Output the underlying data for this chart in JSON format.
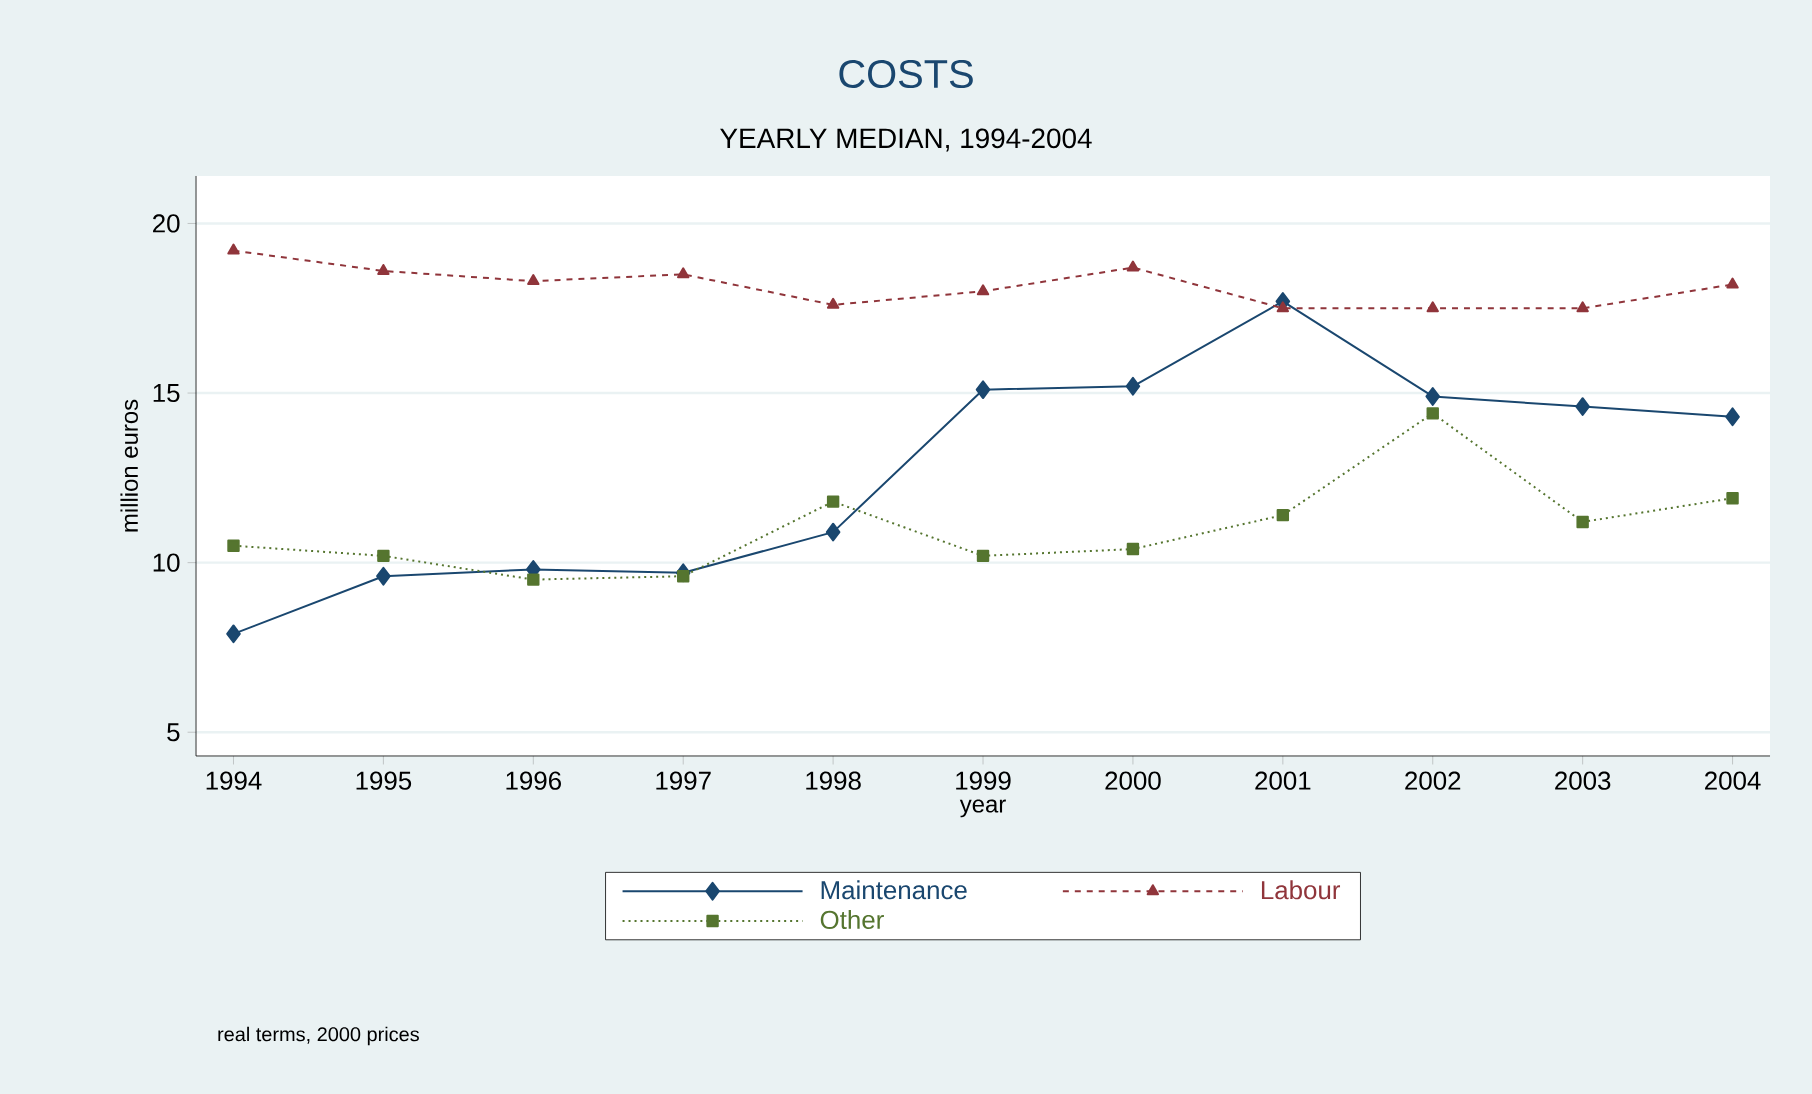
{
  "chart_data": {
    "type": "line",
    "title": "COSTS",
    "subtitle": "YEARLY MEDIAN, 1994-2004",
    "xlabel": "year",
    "ylabel": "million euros",
    "x": [
      1994,
      1995,
      1996,
      1997,
      1998,
      1999,
      2000,
      2001,
      2002,
      2003,
      2004
    ],
    "series": [
      {
        "name": "Maintenance",
        "color": "#1a476f",
        "marker": "diamond",
        "line_style": "solid",
        "values": [
          7.9,
          9.6,
          9.8,
          9.7,
          10.9,
          15.1,
          15.2,
          17.7,
          14.9,
          14.6,
          14.3
        ]
      },
      {
        "name": "Labour",
        "color": "#90353b",
        "marker": "triangle",
        "line_style": "dashed",
        "values": [
          19.2,
          18.6,
          18.3,
          18.5,
          17.6,
          18.0,
          18.7,
          17.5,
          17.5,
          17.5,
          18.2
        ]
      },
      {
        "name": "Other",
        "color": "#55752f",
        "marker": "square",
        "line_style": "dotted",
        "values": [
          10.5,
          10.2,
          9.5,
          9.6,
          11.8,
          10.2,
          10.4,
          11.4,
          14.4,
          11.2,
          11.9
        ]
      }
    ],
    "xlim": [
      1993.75,
      2004.25
    ],
    "ylim": [
      4.3,
      21.4
    ],
    "xticks": [
      1994,
      1995,
      1996,
      1997,
      1998,
      1999,
      2000,
      2001,
      2002,
      2003,
      2004
    ],
    "yticks": [
      5,
      10,
      15,
      20
    ],
    "grid": "y",
    "legend": "bottom",
    "annotations": [
      "real terms, 2000 prices"
    ]
  }
}
